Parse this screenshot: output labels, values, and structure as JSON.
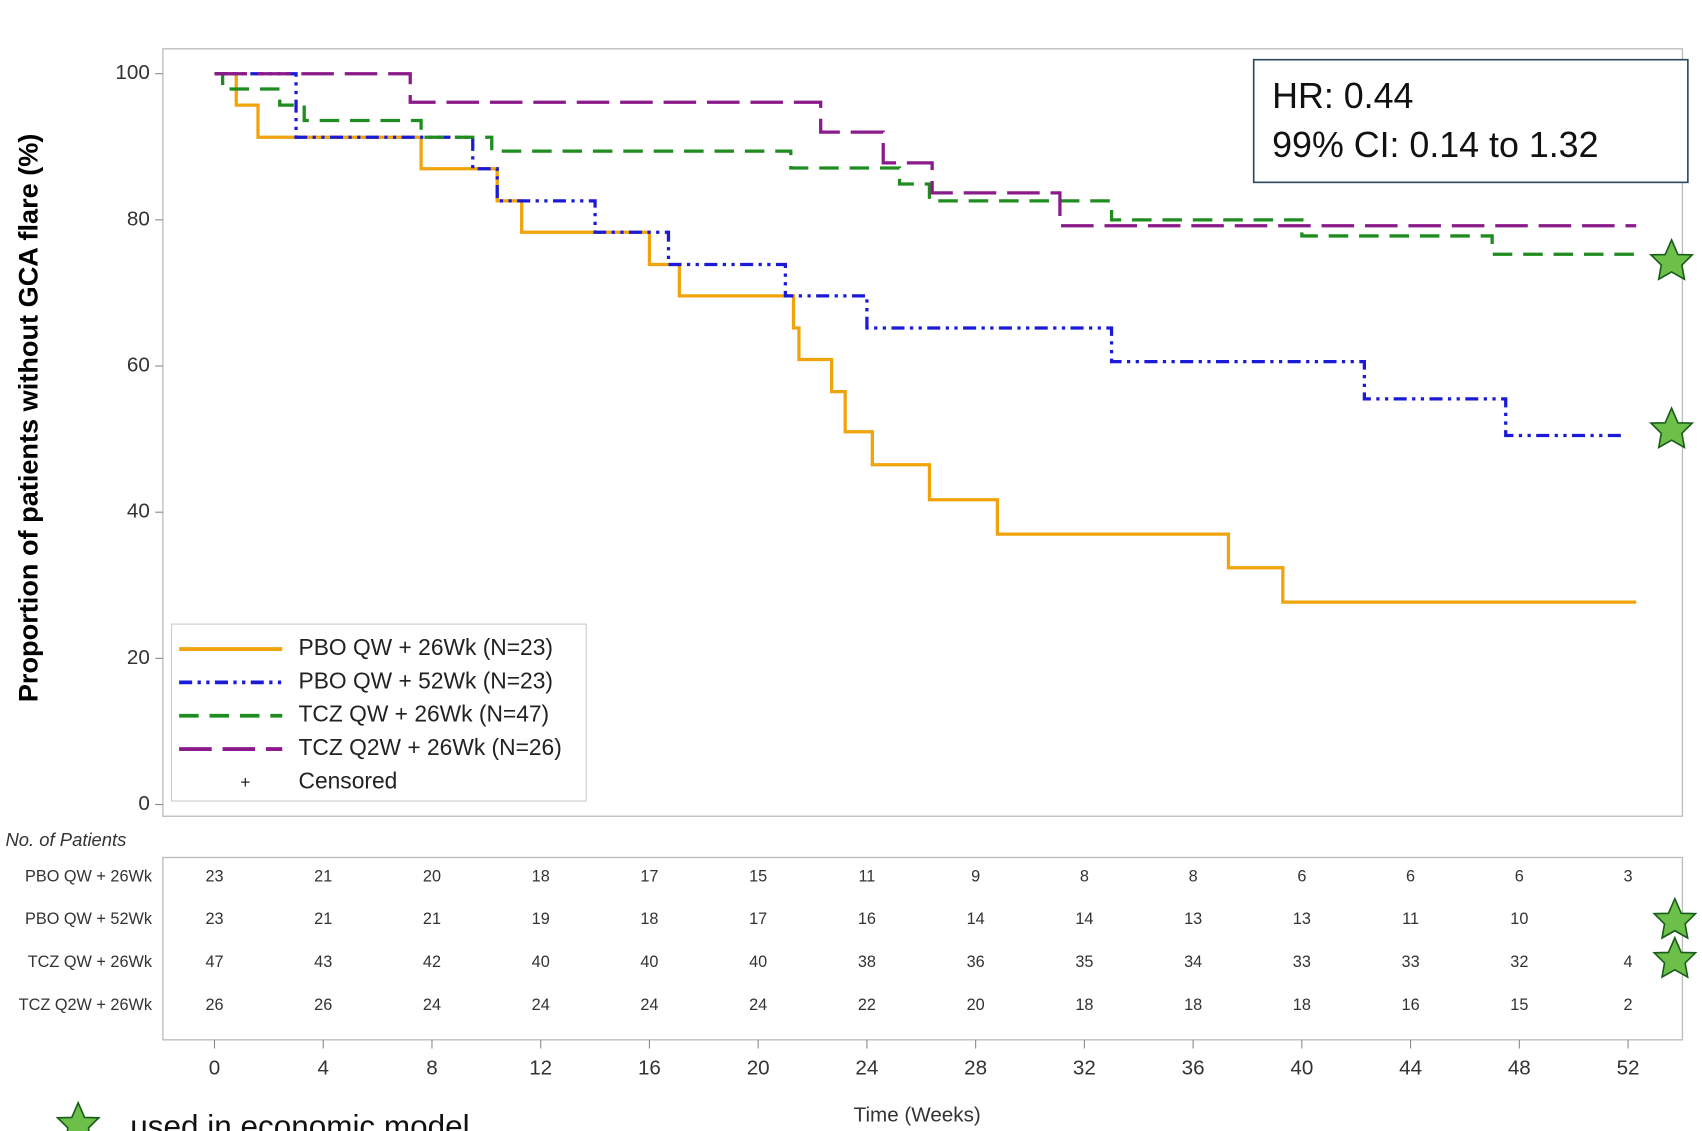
{
  "chart_data": {
    "type": "step",
    "y_label": "Proportion of patients without GCA flare (%)",
    "x_label": "Time (Weeks)",
    "annotations": [
      "HR: 0.44",
      "99% CI: 0.14 to 1.32"
    ],
    "footnote": "used in economic model",
    "censored_label": "Censored",
    "xlim": [
      -1.9,
      54
    ],
    "xticks": [
      0,
      4,
      8,
      12,
      16,
      20,
      24,
      28,
      32,
      36,
      40,
      44,
      48,
      52
    ],
    "ylim": [
      -1.6,
      103.4
    ],
    "yticks": [
      0,
      20,
      40,
      60,
      80,
      100
    ],
    "series": [
      {
        "name": "PBO QW + 26Wk (N=23)",
        "color": "#f0a30a",
        "dash": "solid",
        "x": [
          0,
          0.8,
          1.6,
          7.6,
          10.4,
          11.3,
          16.0,
          17.1,
          21.3,
          21.5,
          22.7,
          23.2,
          24.2,
          26.3,
          28.8,
          37.3,
          39.3,
          52.3
        ],
        "values": [
          100,
          95.7,
          91.3,
          87.0,
          82.6,
          78.3,
          73.9,
          69.6,
          65.2,
          60.9,
          56.5,
          51.0,
          46.5,
          41.7,
          37.0,
          32.4,
          27.7,
          27.7
        ]
      },
      {
        "name": "PBO QW + 52Wk (N=23)",
        "color": "#1a1ad8",
        "dash": "dashdotdot",
        "x": [
          0,
          3.0,
          9.5,
          10.4,
          14.0,
          16.7,
          21.0,
          24.0,
          33.0,
          42.3,
          47.5,
          51.8
        ],
        "values": [
          100,
          91.3,
          87.0,
          82.6,
          78.3,
          73.9,
          69.6,
          65.2,
          60.6,
          55.5,
          50.5,
          50.5
        ]
      },
      {
        "name": "TCZ QW + 26Wk (N=47)",
        "color": "#1e8c1e",
        "dash": "dash",
        "x": [
          0,
          0.3,
          2.4,
          3.3,
          7.6,
          10.2,
          21.2,
          25.2,
          26.3,
          33.0,
          40.0,
          47.0,
          52.6
        ],
        "values": [
          100,
          97.9,
          95.7,
          93.6,
          91.3,
          89.4,
          87.1,
          84.9,
          82.6,
          80.0,
          77.8,
          75.3,
          75.3
        ]
      },
      {
        "name": "TCZ Q2W + 26Wk (N=26)",
        "color": "#8b1a8b",
        "dash": "longdash",
        "x": [
          0,
          7.2,
          22.3,
          24.6,
          26.4,
          31.1,
          52.3
        ],
        "values": [
          100,
          96.1,
          92.0,
          87.8,
          83.7,
          79.2,
          79.2
        ]
      }
    ],
    "risk_table": {
      "title": "No. of Patients",
      "rows": [
        {
          "name": "PBO QW + 26Wk",
          "values": [
            23,
            21,
            20,
            18,
            17,
            15,
            11,
            9,
            8,
            8,
            6,
            6,
            6,
            3
          ]
        },
        {
          "name": "PBO QW + 52Wk",
          "values": [
            23,
            21,
            21,
            19,
            18,
            17,
            16,
            14,
            14,
            13,
            13,
            11,
            10,
            null
          ]
        },
        {
          "name": "TCZ QW + 26Wk",
          "values": [
            47,
            43,
            42,
            40,
            40,
            40,
            38,
            36,
            35,
            34,
            33,
            33,
            32,
            4
          ]
        },
        {
          "name": "TCZ Q2W + 26Wk",
          "values": [
            26,
            26,
            24,
            24,
            24,
            24,
            22,
            20,
            18,
            18,
            18,
            16,
            15,
            2
          ]
        }
      ]
    }
  }
}
